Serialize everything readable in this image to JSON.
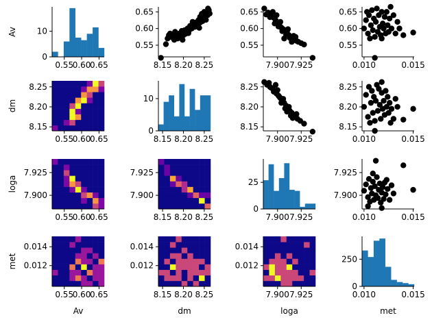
{
  "chart_data": {
    "type": "pairplot",
    "variables": [
      "Av",
      "dm",
      "loga",
      "met"
    ],
    "ranges": {
      "Av": [
        0.515,
        0.665
      ],
      "dm": [
        8.14,
        8.265
      ],
      "loga": [
        7.885,
        7.94
      ],
      "met": [
        0.0098,
        0.0151
      ]
    },
    "ticks": {
      "Av": [
        {
          "v": 0.55,
          "label": "0.55"
        },
        {
          "v": 0.6,
          "label": "0.60"
        },
        {
          "v": 0.65,
          "label": "0.65"
        }
      ],
      "dm": [
        {
          "v": 8.15,
          "label": "8.15"
        },
        {
          "v": 8.2,
          "label": "8.20"
        },
        {
          "v": 8.25,
          "label": "8.25"
        }
      ],
      "loga": [
        {
          "v": 7.9,
          "label": "7.900"
        },
        {
          "v": 7.925,
          "label": "7.925"
        }
      ],
      "met": [
        {
          "v": 0.01,
          "label": "0.010"
        },
        {
          "v": 0.012,
          "label": "0.012"
        },
        {
          "v": 0.014,
          "label": "0.014"
        },
        {
          "v": 0.015,
          "label": "0.015"
        }
      ]
    },
    "diag_hist": {
      "Av": {
        "counts": [
          2,
          0,
          6,
          19,
          7.5,
          6.5,
          9,
          11.5,
          3.5
        ],
        "yticks": [
          {
            "v": 0,
            "label": "0"
          },
          {
            "v": 10,
            "label": "10"
          }
        ],
        "ymax": 19.5
      },
      "dm": {
        "counts": [
          2,
          9,
          11,
          4.5,
          14.5,
          4.5,
          13,
          6.5,
          11,
          11
        ],
        "yticks": [
          {
            "v": 0,
            "label": "0"
          },
          {
            "v": 10,
            "label": "10"
          }
        ],
        "ymax": 15.5
      },
      "loga": {
        "counts": [
          27,
          42,
          17,
          29,
          43,
          18,
          17,
          2,
          5,
          5
        ],
        "yticks": [
          {
            "v": 0,
            "label": "0"
          },
          {
            "v": 25,
            "label": "25"
          }
        ],
        "ymax": 47
      },
      "met": {
        "counts": [
          330,
          270,
          420,
          440,
          180,
          60,
          40,
          30,
          20
        ],
        "yticks": [
          {
            "v": 0,
            "label": "0"
          },
          {
            "v": 250,
            "label": "250"
          }
        ],
        "ymax": 460
      }
    },
    "xtick_sets": {
      "Av": [
        {
          "v": 0.55,
          "label": "0.55"
        },
        {
          "v": 0.6,
          "label": "0.60"
        },
        {
          "v": 0.65,
          "label": "0.65"
        }
      ],
      "dm": [
        {
          "v": 8.15,
          "label": "8.15"
        },
        {
          "v": 8.2,
          "label": "8.20"
        },
        {
          "v": 8.25,
          "label": "8.25"
        }
      ],
      "loga": [
        {
          "v": 7.9,
          "label": "7.900"
        },
        {
          "v": 7.925,
          "label": "7.925"
        }
      ],
      "met": [
        {
          "v": 0.01,
          "label": "0.010"
        },
        {
          "v": 0.015,
          "label": "0.015"
        }
      ]
    },
    "ytick_sets": {
      "Av": [
        {
          "v": 0.55,
          "label": "0.55"
        },
        {
          "v": 0.6,
          "label": "0.60"
        },
        {
          "v": 0.65,
          "label": "0.65"
        }
      ],
      "dm": [
        {
          "v": 8.15,
          "label": "8.15"
        },
        {
          "v": 8.2,
          "label": "8.20"
        },
        {
          "v": 8.25,
          "label": "8.25"
        }
      ],
      "loga": [
        {
          "v": 7.9,
          "label": "7.900"
        },
        {
          "v": 7.925,
          "label": "7.925"
        }
      ],
      "met": [
        {
          "v": 0.012,
          "label": "0.012"
        },
        {
          "v": 0.014,
          "label": "0.014"
        }
      ]
    },
    "scatter": {
      "Av|dm": [
        [
          8.146,
          0.512
        ],
        [
          8.158,
          0.553
        ],
        [
          8.162,
          0.57
        ],
        [
          8.165,
          0.58
        ],
        [
          8.17,
          0.575
        ],
        [
          8.175,
          0.583
        ],
        [
          8.178,
          0.566
        ],
        [
          8.181,
          0.578
        ],
        [
          8.186,
          0.57
        ],
        [
          8.19,
          0.585
        ],
        [
          8.193,
          0.575
        ],
        [
          8.196,
          0.593
        ],
        [
          8.2,
          0.58
        ],
        [
          8.203,
          0.595
        ],
        [
          8.206,
          0.587
        ],
        [
          8.21,
          0.6
        ],
        [
          8.213,
          0.593
        ],
        [
          8.216,
          0.608
        ],
        [
          8.22,
          0.6
        ],
        [
          8.223,
          0.612
        ],
        [
          8.226,
          0.605
        ],
        [
          8.23,
          0.618
        ],
        [
          8.233,
          0.61
        ],
        [
          8.236,
          0.625
        ],
        [
          8.24,
          0.618
        ],
        [
          8.243,
          0.63
        ],
        [
          8.246,
          0.622
        ],
        [
          8.249,
          0.64
        ],
        [
          8.252,
          0.632
        ],
        [
          8.255,
          0.648
        ],
        [
          8.258,
          0.64
        ],
        [
          8.261,
          0.655
        ],
        [
          8.263,
          0.645
        ],
        [
          8.259,
          0.66
        ],
        [
          8.25,
          0.65
        ],
        [
          8.24,
          0.635
        ],
        [
          8.228,
          0.605
        ],
        [
          8.215,
          0.598
        ],
        [
          8.205,
          0.584
        ],
        [
          8.195,
          0.572
        ],
        [
          8.185,
          0.58
        ],
        [
          8.175,
          0.572
        ],
        [
          8.168,
          0.585
        ],
        [
          8.18,
          0.59
        ],
        [
          8.222,
          0.62
        ],
        [
          8.238,
          0.602
        ],
        [
          8.212,
          0.586
        ],
        [
          8.198,
          0.566
        ],
        [
          8.244,
          0.644
        ],
        [
          8.254,
          0.626
        ]
      ],
      "Av|loga": [
        [
          7.886,
          0.66
        ],
        [
          7.89,
          0.648
        ],
        [
          7.893,
          0.64
        ],
        [
          7.896,
          0.632
        ],
        [
          7.898,
          0.625
        ],
        [
          7.9,
          0.618
        ],
        [
          7.902,
          0.61
        ],
        [
          7.904,
          0.603
        ],
        [
          7.906,
          0.598
        ],
        [
          7.908,
          0.592
        ],
        [
          7.91,
          0.588
        ],
        [
          7.912,
          0.58
        ],
        [
          7.914,
          0.575
        ],
        [
          7.916,
          0.57
        ],
        [
          7.918,
          0.566
        ],
        [
          7.92,
          0.563
        ],
        [
          7.922,
          0.56
        ],
        [
          7.925,
          0.556
        ],
        [
          7.928,
          0.552
        ],
        [
          7.937,
          0.512
        ],
        [
          7.892,
          0.634
        ],
        [
          7.897,
          0.615
        ],
        [
          7.901,
          0.606
        ],
        [
          7.905,
          0.592
        ],
        [
          7.909,
          0.582
        ],
        [
          7.913,
          0.572
        ],
        [
          7.917,
          0.578
        ],
        [
          7.903,
          0.62
        ],
        [
          7.899,
          0.64
        ],
        [
          7.911,
          0.598
        ],
        [
          7.915,
          0.56
        ],
        [
          7.907,
          0.57
        ],
        [
          7.895,
          0.65
        ],
        [
          7.919,
          0.575
        ],
        [
          7.888,
          0.642
        ]
      ],
      "Av|met": [
        [
          0.01,
          0.6
        ],
        [
          0.0102,
          0.625
        ],
        [
          0.0104,
          0.585
        ],
        [
          0.0105,
          0.64
        ],
        [
          0.0106,
          0.57
        ],
        [
          0.0107,
          0.61
        ],
        [
          0.0108,
          0.655
        ],
        [
          0.0109,
          0.595
        ],
        [
          0.011,
          0.63
        ],
        [
          0.0111,
          0.575
        ],
        [
          0.0112,
          0.62
        ],
        [
          0.0113,
          0.66
        ],
        [
          0.0114,
          0.59
        ],
        [
          0.0115,
          0.64
        ],
        [
          0.0116,
          0.605
        ],
        [
          0.0117,
          0.58
        ],
        [
          0.0118,
          0.65
        ],
        [
          0.0119,
          0.615
        ],
        [
          0.012,
          0.6
        ],
        [
          0.0121,
          0.635
        ],
        [
          0.0122,
          0.585
        ],
        [
          0.0123,
          0.65
        ],
        [
          0.0124,
          0.61
        ],
        [
          0.0125,
          0.59
        ],
        [
          0.0126,
          0.63
        ],
        [
          0.0128,
          0.6
        ],
        [
          0.013,
          0.64
        ],
        [
          0.0132,
          0.585
        ],
        [
          0.0134,
          0.62
        ],
        [
          0.0136,
          0.6
        ],
        [
          0.014,
          0.58
        ],
        [
          0.015,
          0.588
        ],
        [
          0.0111,
          0.512
        ],
        [
          0.0103,
          0.65
        ],
        [
          0.0118,
          0.57
        ],
        [
          0.0127,
          0.665
        ]
      ],
      "dm|loga": [
        [
          7.886,
          8.262
        ],
        [
          7.889,
          8.255
        ],
        [
          7.892,
          8.25
        ],
        [
          7.895,
          8.245
        ],
        [
          7.897,
          8.24
        ],
        [
          7.899,
          8.233
        ],
        [
          7.901,
          8.228
        ],
        [
          7.903,
          8.222
        ],
        [
          7.905,
          8.215
        ],
        [
          7.907,
          8.21
        ],
        [
          7.909,
          8.203
        ],
        [
          7.911,
          8.196
        ],
        [
          7.913,
          8.19
        ],
        [
          7.915,
          8.185
        ],
        [
          7.917,
          8.18
        ],
        [
          7.919,
          8.175
        ],
        [
          7.921,
          8.17
        ],
        [
          7.924,
          8.165
        ],
        [
          7.928,
          8.158
        ],
        [
          7.937,
          8.138
        ],
        [
          7.891,
          8.26
        ],
        [
          7.896,
          8.238
        ],
        [
          7.9,
          8.242
        ],
        [
          7.904,
          8.21
        ],
        [
          7.908,
          8.196
        ],
        [
          7.912,
          8.2
        ],
        [
          7.916,
          8.172
        ],
        [
          7.902,
          8.225
        ],
        [
          7.898,
          8.255
        ],
        [
          7.91,
          8.188
        ],
        [
          7.914,
          8.178
        ],
        [
          7.906,
          8.22
        ],
        [
          7.92,
          8.182
        ],
        [
          7.893,
          8.248
        ]
      ],
      "dm|met": [
        [
          0.01,
          8.2
        ],
        [
          0.0102,
          8.23
        ],
        [
          0.0104,
          8.175
        ],
        [
          0.0105,
          8.25
        ],
        [
          0.0106,
          8.16
        ],
        [
          0.0107,
          8.21
        ],
        [
          0.0108,
          8.24
        ],
        [
          0.0109,
          8.185
        ],
        [
          0.011,
          8.225
        ],
        [
          0.0111,
          8.165
        ],
        [
          0.0112,
          8.215
        ],
        [
          0.0113,
          8.255
        ],
        [
          0.0114,
          8.19
        ],
        [
          0.0115,
          8.245
        ],
        [
          0.0116,
          8.205
        ],
        [
          0.0117,
          8.17
        ],
        [
          0.0118,
          8.235
        ],
        [
          0.0119,
          8.195
        ],
        [
          0.012,
          8.215
        ],
        [
          0.0121,
          8.18
        ],
        [
          0.0122,
          8.24
        ],
        [
          0.0123,
          8.2
        ],
        [
          0.0124,
          8.225
        ],
        [
          0.0125,
          8.185
        ],
        [
          0.0126,
          8.21
        ],
        [
          0.0128,
          8.195
        ],
        [
          0.013,
          8.17
        ],
        [
          0.0132,
          8.22
        ],
        [
          0.0134,
          8.2
        ],
        [
          0.014,
          8.168
        ],
        [
          0.015,
          8.195
        ],
        [
          0.0111,
          8.14
        ],
        [
          0.0118,
          8.262
        ],
        [
          0.0127,
          8.16
        ]
      ],
      "loga|met": [
        [
          0.01,
          7.905
        ],
        [
          0.0102,
          7.912
        ],
        [
          0.0104,
          7.898
        ],
        [
          0.0105,
          7.918
        ],
        [
          0.0106,
          7.893
        ],
        [
          0.0107,
          7.908
        ],
        [
          0.0108,
          7.902
        ],
        [
          0.0109,
          7.915
        ],
        [
          0.011,
          7.895
        ],
        [
          0.0111,
          7.91
        ],
        [
          0.0112,
          7.9
        ],
        [
          0.0113,
          7.92
        ],
        [
          0.0114,
          7.897
        ],
        [
          0.0115,
          7.906
        ],
        [
          0.0116,
          7.913
        ],
        [
          0.0117,
          7.892
        ],
        [
          0.0118,
          7.903
        ],
        [
          0.0119,
          7.909
        ],
        [
          0.012,
          7.896
        ],
        [
          0.0121,
          7.914
        ],
        [
          0.0122,
          7.901
        ],
        [
          0.0124,
          7.907
        ],
        [
          0.0126,
          7.895
        ],
        [
          0.0128,
          7.911
        ],
        [
          0.013,
          7.902
        ],
        [
          0.014,
          7.933
        ],
        [
          0.015,
          7.906
        ],
        [
          0.0112,
          7.938
        ],
        [
          0.0104,
          7.888
        ],
        [
          0.0118,
          7.886
        ],
        [
          0.0123,
          7.917
        ],
        [
          0.0109,
          7.924
        ]
      ]
    },
    "heatmaps": {
      "dm|Av": [
        [
          0,
          0,
          0,
          0,
          0,
          0,
          0,
          0,
          0
        ],
        [
          0,
          0,
          0,
          0,
          0,
          0,
          0,
          0,
          0
        ],
        [
          0,
          0,
          0,
          0,
          0,
          0,
          0,
          0,
          0
        ],
        [
          0,
          0,
          0,
          0,
          0,
          0,
          0,
          0,
          0
        ],
        [
          0,
          0,
          0,
          0,
          0,
          0,
          0,
          0,
          0
        ],
        [
          0,
          0,
          0,
          0,
          0,
          0,
          0,
          0,
          0
        ],
        [
          0,
          0,
          0,
          0,
          0,
          0,
          0,
          0,
          0
        ],
        [
          0,
          0,
          0,
          0,
          0,
          0,
          0,
          0,
          0
        ],
        [
          0,
          0,
          0,
          0,
          0,
          0,
          0,
          0,
          0
        ]
      ],
      "loga|Av": [
        [
          0,
          0,
          0,
          0,
          0,
          0,
          0,
          0,
          0
        ]
      ],
      "met|Av": [
        [
          0
        ]
      ]
    }
  }
}
